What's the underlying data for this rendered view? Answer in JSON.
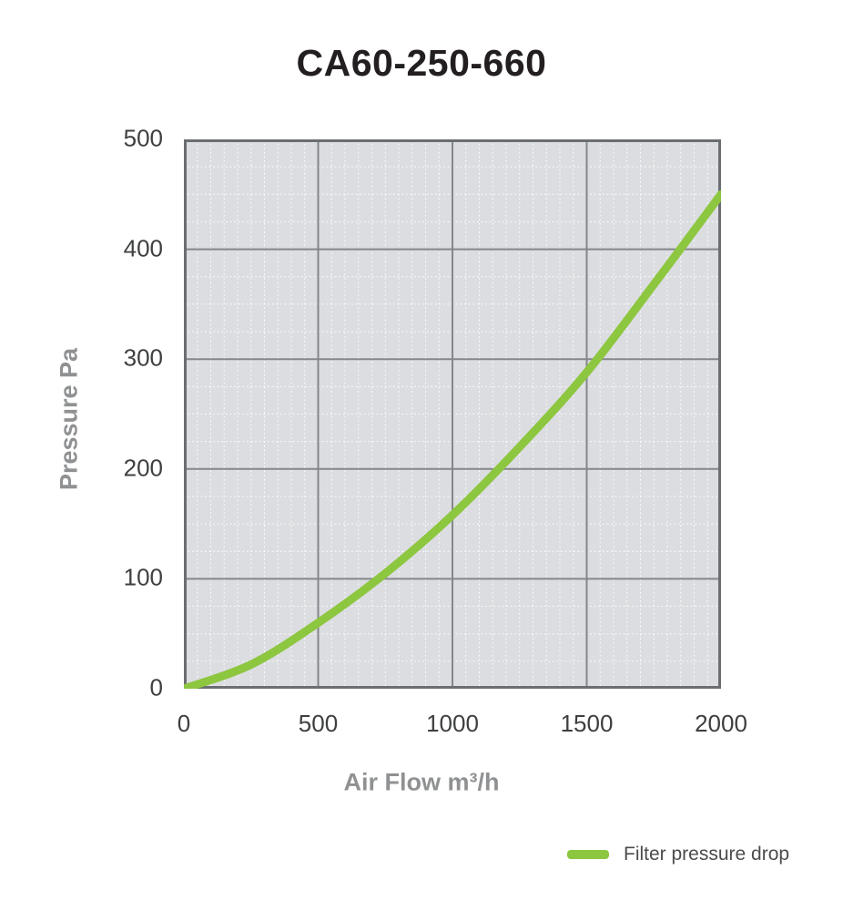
{
  "title": "CA60-250-660",
  "chart_data": {
    "type": "line",
    "title": "CA60-250-660",
    "xlabel": "Air Flow m³/h",
    "ylabel": "Pressure Pa",
    "xlim": [
      0,
      2000
    ],
    "ylim": [
      0,
      500
    ],
    "x_ticks": [
      "0",
      "500",
      "1000",
      "1500",
      "2000"
    ],
    "y_ticks": [
      "0",
      "100",
      "200",
      "300",
      "400",
      "500"
    ],
    "minor_grid": {
      "x_step": 50,
      "y_step": 25
    },
    "grid": true,
    "legend_position": "bottom-right",
    "series": [
      {
        "name": "Filter pressure drop",
        "color": "#8dc63f",
        "x": [
          0,
          250,
          500,
          750,
          1000,
          1250,
          1500,
          1750,
          2000
        ],
        "y": [
          0,
          22,
          60,
          105,
          158,
          220,
          288,
          368,
          450
        ]
      }
    ]
  },
  "legend": {
    "items": [
      {
        "label": "Filter pressure drop",
        "color": "#8dc63f",
        "swatch": "line-swatch"
      }
    ]
  },
  "colors": {
    "plot_background": "#dbdde0",
    "minor_grid": "#ffffff",
    "major_grid": "#84878a",
    "plot_border": "#6b6e71",
    "curve": "#8dc63f",
    "title_text": "#231f20",
    "tick_text": "#3d3f40",
    "axis_title_text": "#8f9193",
    "legend_text": "#4c4c4c"
  }
}
